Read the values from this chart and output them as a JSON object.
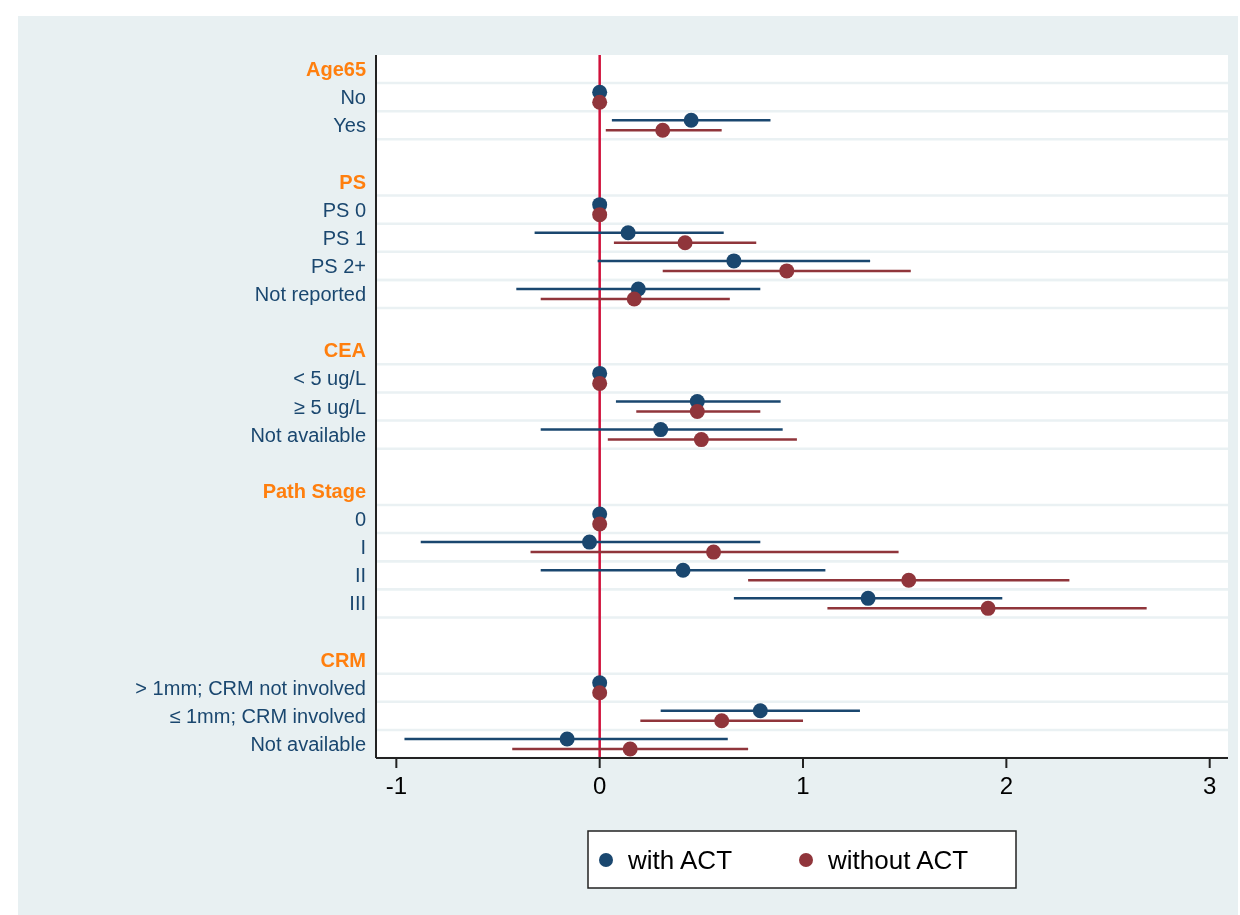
{
  "chart_data": {
    "type": "scatter",
    "orientation": "horizontal",
    "categories": [
      "Age65",
      "No",
      "Yes",
      null,
      "PS",
      "PS 0",
      "PS 1",
      "PS 2+",
      "Not reported",
      null,
      "CEA",
      "< 5 ug/L",
      "≥ 5 ug/L",
      "Not available",
      null,
      "Path Stage",
      "0",
      "I",
      "II",
      "III",
      null,
      "CRM",
      "> 1mm; CRM not involved",
      "≤ 1mm; CRM  involved",
      "Not available"
    ],
    "series": [
      {
        "name": "with ACT",
        "color": "#1a476f",
        "values": [
          null,
          0,
          0.45,
          null,
          null,
          0,
          0.14,
          0.66,
          0.19,
          null,
          null,
          0,
          0.48,
          0.3,
          null,
          null,
          0,
          -0.05,
          0.41,
          1.32,
          null,
          null,
          0,
          0.79,
          -0.16
        ],
        "errors": [
          null,
          null,
          [
            0.06,
            0.84
          ],
          null,
          null,
          null,
          [
            -0.32,
            0.61
          ],
          [
            -0.01,
            1.33
          ],
          [
            -0.41,
            0.79
          ],
          null,
          null,
          null,
          [
            0.08,
            0.89
          ],
          [
            -0.29,
            0.9
          ],
          null,
          null,
          null,
          [
            -0.88,
            0.79
          ],
          [
            -0.29,
            1.11
          ],
          [
            0.66,
            1.98
          ],
          null,
          null,
          null,
          [
            0.3,
            1.28
          ],
          [
            -0.96,
            0.63
          ]
        ]
      },
      {
        "name": "without ACT",
        "color": "#90353b",
        "values": [
          null,
          0,
          0.31,
          null,
          null,
          0,
          0.42,
          0.92,
          0.17,
          null,
          null,
          0,
          0.48,
          0.5,
          null,
          null,
          0,
          0.56,
          1.52,
          1.91,
          null,
          null,
          0,
          0.6,
          0.15
        ],
        "errors": [
          null,
          null,
          [
            0.03,
            0.6
          ],
          null,
          null,
          null,
          [
            0.07,
            0.77
          ],
          [
            0.31,
            1.53
          ],
          [
            -0.29,
            0.64
          ],
          null,
          null,
          null,
          [
            0.18,
            0.79
          ],
          [
            0.04,
            0.97
          ],
          null,
          null,
          null,
          [
            -0.34,
            1.47
          ],
          [
            0.73,
            2.31
          ],
          [
            1.12,
            2.69
          ],
          null,
          null,
          null,
          [
            0.2,
            1.0
          ],
          [
            -0.43,
            0.73
          ]
        ]
      }
    ],
    "xlim": [
      -1.1,
      3.09
    ],
    "xticks": [
      -1,
      0,
      1,
      2,
      3
    ],
    "ref_lines": [
      {
        "axis": "x",
        "value": 0,
        "color": "#d0103a"
      }
    ],
    "grid": "y",
    "legend": "bottom",
    "marker": "circle"
  }
}
